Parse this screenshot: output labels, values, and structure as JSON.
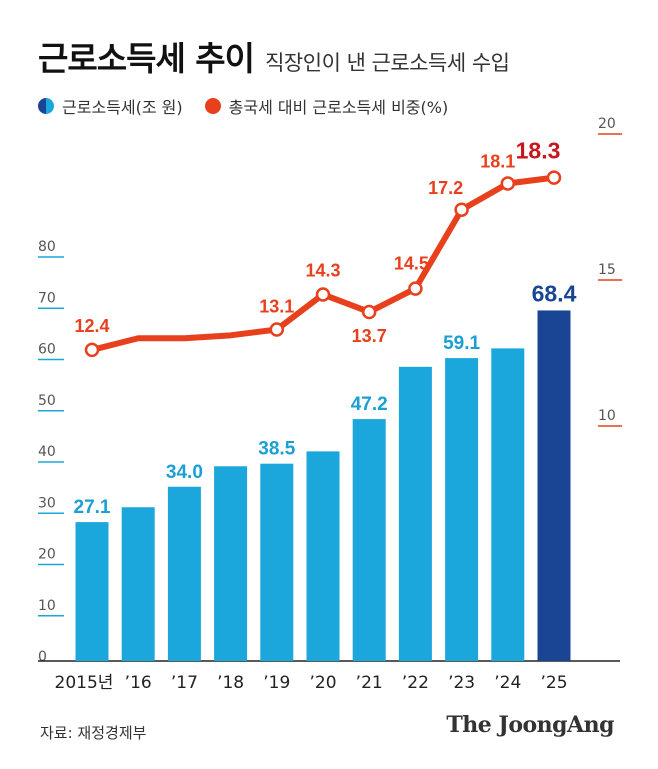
{
  "header": {
    "title": "근로소득세 추이",
    "subtitle": "직장인이 낸 근로소득세 수입"
  },
  "legend": {
    "bar_label": "근로소득세(조 원)",
    "line_label": "총국세 대비 근로소득세 비중(%)"
  },
  "footer": {
    "source": "자료: 재정경제부",
    "logo": "The JoongAng"
  },
  "colors": {
    "bar": "#1ba7dc",
    "bar_highlight": "#1a4494",
    "bar_label": "#1b9fd4",
    "line": "#e8401c",
    "line_label": "#e8401c",
    "line_label_last": "#c8161d"
  },
  "chart_data": {
    "type": "bar+line",
    "categories": [
      "2015년",
      "’16",
      "’17",
      "’18",
      "’19",
      "’20",
      "’21",
      "’22",
      "’23",
      "’24",
      "’25"
    ],
    "series": [
      {
        "name": "근로소득세(조 원)",
        "type": "bar",
        "axis": "left",
        "values": [
          27.1,
          30.0,
          34.0,
          38.0,
          38.5,
          40.9,
          47.2,
          57.4,
          59.1,
          61.0,
          68.4
        ],
        "labels": [
          "27.1",
          "",
          "34.0",
          "",
          "38.5",
          "",
          "47.2",
          "",
          "59.1",
          "",
          "68.4"
        ]
      },
      {
        "name": "총국세 대비 근로소득세 비중(%)",
        "type": "line",
        "axis": "right",
        "values": [
          12.4,
          12.8,
          12.8,
          12.9,
          13.1,
          14.3,
          13.7,
          14.5,
          17.2,
          18.1,
          18.3
        ],
        "labels": [
          "12.4",
          "",
          "",
          "",
          "13.1",
          "14.3",
          "13.7",
          "14.5",
          "17.2",
          "18.1",
          "18.3"
        ]
      }
    ],
    "left_axis": {
      "ticks": [
        0,
        10,
        20,
        30,
        40,
        50,
        60,
        70,
        80
      ],
      "ylim": [
        0,
        80
      ]
    },
    "right_axis": {
      "ticks": [
        10,
        15,
        20
      ],
      "ylim": [
        10,
        20
      ]
    },
    "highlight_index": 10,
    "label_indices": [
      0,
      4,
      5,
      6,
      7,
      8,
      9,
      10
    ],
    "bar_label_indices": [
      0,
      2,
      4,
      6,
      8,
      10
    ],
    "grid": false
  }
}
